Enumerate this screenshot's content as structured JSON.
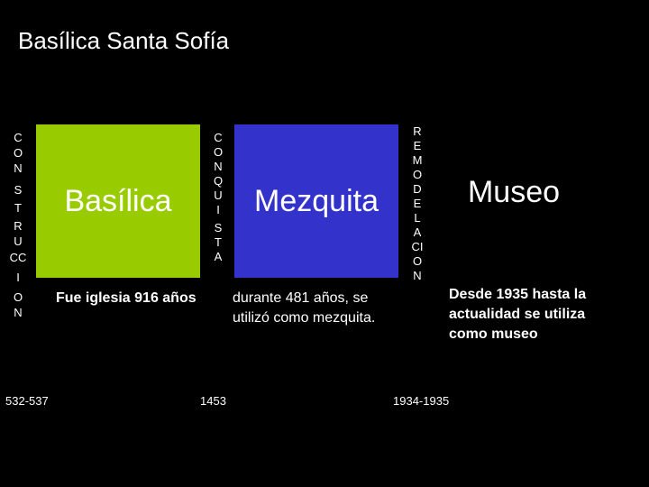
{
  "title": "Basílica Santa Sofía",
  "colors": {
    "background": "#000000",
    "basilica_box": "#99cc00",
    "mezquita_box": "#3333cc",
    "museo_box": "#000000"
  },
  "stages": [
    {
      "vertical_label": [
        "C",
        "O",
        "N",
        "S",
        "T",
        "R",
        "U",
        "CC",
        "I",
        "O",
        "N"
      ],
      "box_label": "Basílica",
      "description": "Fue iglesia 916 años",
      "date": "532-537"
    },
    {
      "vertical_label": [
        "C",
        "O",
        "N",
        "Q",
        "U",
        "I",
        "S",
        "T",
        "A"
      ],
      "box_label": "Mezquita",
      "description": "durante 481 años, se utilizó como mezquita.",
      "date": "1453"
    },
    {
      "vertical_label": [
        "R",
        "E",
        "M",
        "O",
        "D",
        "E",
        "L",
        "A",
        "CI",
        "O",
        "N"
      ],
      "box_label": "Museo",
      "description": "Desde 1935 hasta la actualidad se utiliza como museo",
      "date": "1934-1935"
    }
  ]
}
